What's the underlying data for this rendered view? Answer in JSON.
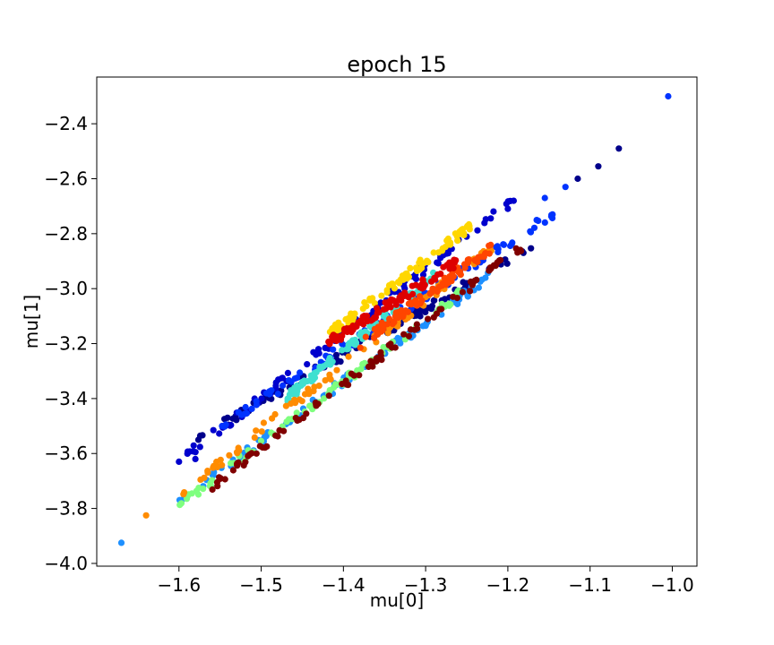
{
  "chart_data": {
    "type": "scatter",
    "title": "epoch 15",
    "xlabel": "mu[0]",
    "ylabel": "mu[1]",
    "xlim": [
      -1.7,
      -0.97
    ],
    "ylim": [
      -4.01,
      -2.23
    ],
    "xticks": [
      -1.6,
      -1.5,
      -1.4,
      -1.3,
      -1.2,
      -1.1,
      -1.0
    ],
    "xtick_labels": [
      "−1.6",
      "−1.5",
      "−1.4",
      "−1.3",
      "−1.2",
      "−1.1",
      "−1.0"
    ],
    "yticks": [
      -4.0,
      -3.8,
      -3.6,
      -3.4,
      -3.2,
      -3.0,
      -2.8,
      -2.6,
      -2.4
    ],
    "ytick_labels": [
      "−4.0",
      "−3.8",
      "−3.6",
      "−3.4",
      "−3.2",
      "−3.0",
      "−2.8",
      "−2.6",
      "−2.4"
    ],
    "grid": false,
    "series": [
      {
        "color": "#00008b",
        "x_range": [
          -1.58,
          -1.17
        ],
        "y_range": [
          -3.55,
          -2.85
        ],
        "outliers": [
          [
            -1.115,
            -2.6
          ],
          [
            -1.09,
            -2.555
          ],
          [
            -1.065,
            -2.49
          ]
        ]
      },
      {
        "color": "#0000cd",
        "x_range": [
          -1.6,
          -1.19
        ],
        "y_range": [
          -3.63,
          -2.67
        ],
        "outliers": [
          [
            -1.6,
            -3.63
          ],
          [
            -1.58,
            -3.62
          ]
        ]
      },
      {
        "color": "#0033ff",
        "x_range": [
          -1.55,
          -1.13
        ],
        "y_range": [
          -3.5,
          -2.7
        ],
        "outliers": [
          [
            -1.005,
            -2.3
          ],
          [
            -1.13,
            -2.63
          ],
          [
            -1.155,
            -2.67
          ]
        ]
      },
      {
        "color": "#1e90ff",
        "x_range": [
          -1.6,
          -1.22
        ],
        "y_range": [
          -3.77,
          -2.95
        ],
        "outliers": [
          [
            -1.67,
            -3.925
          ]
        ]
      },
      {
        "color": "#40e0d0",
        "x_range": [
          -1.47,
          -1.29
        ],
        "y_range": [
          -3.4,
          -2.95
        ],
        "outliers": []
      },
      {
        "color": "#7fff7f",
        "x_range": [
          -1.6,
          -1.25
        ],
        "y_range": [
          -3.79,
          -3.0
        ],
        "outliers": []
      },
      {
        "color": "#ffd700",
        "x_range": [
          -1.42,
          -1.24
        ],
        "y_range": [
          -3.17,
          -2.76
        ],
        "outliers": []
      },
      {
        "color": "#ff8c00",
        "x_range": [
          -1.6,
          -1.22
        ],
        "y_range": [
          -3.75,
          -2.85
        ],
        "outliers": [
          [
            -1.64,
            -3.825
          ]
        ]
      },
      {
        "color": "#ff4500",
        "x_range": [
          -1.38,
          -1.22
        ],
        "y_range": [
          -3.2,
          -2.85
        ],
        "outliers": []
      },
      {
        "color": "#dd0000",
        "x_range": [
          -1.42,
          -1.26
        ],
        "y_range": [
          -3.2,
          -2.9
        ],
        "outliers": []
      },
      {
        "color": "#800000",
        "x_range": [
          -1.56,
          -1.18
        ],
        "y_range": [
          -3.72,
          -2.84
        ],
        "outliers": []
      }
    ]
  }
}
